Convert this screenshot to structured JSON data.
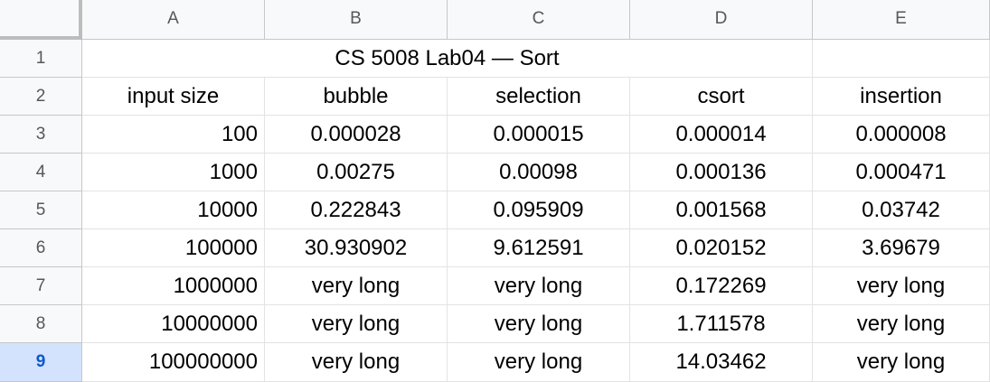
{
  "columns": [
    "A",
    "B",
    "C",
    "D",
    "E"
  ],
  "row_numbers": [
    "1",
    "2",
    "3",
    "4",
    "5",
    "6",
    "7",
    "8",
    "9"
  ],
  "selected_row": "9",
  "title": "CS 5008 Lab04 — Sort",
  "headers": [
    "input size",
    "bubble",
    "selection",
    "csort",
    "insertion"
  ],
  "rows": [
    [
      "100",
      "0.000028",
      "0.000015",
      "0.000014",
      "0.000008"
    ],
    [
      "1000",
      "0.00275",
      "0.00098",
      "0.000136",
      "0.000471"
    ],
    [
      "10000",
      "0.222843",
      "0.095909",
      "0.001568",
      "0.03742"
    ],
    [
      "100000",
      "30.930902",
      "9.612591",
      "0.020152",
      "3.69679"
    ],
    [
      "1000000",
      "very long",
      "very long",
      "0.172269",
      "very long"
    ],
    [
      "10000000",
      "very long",
      "very long",
      "1.711578",
      "very long"
    ],
    [
      "100000000",
      "very long",
      "very long",
      "14.03462",
      "very long"
    ]
  ],
  "colors": {
    "header_bg": "#f8f9fa",
    "gridline": "#e2e3e3",
    "selected_row_header_bg": "#d3e3fd",
    "selected_row_header_text": "#0b57d0"
  }
}
